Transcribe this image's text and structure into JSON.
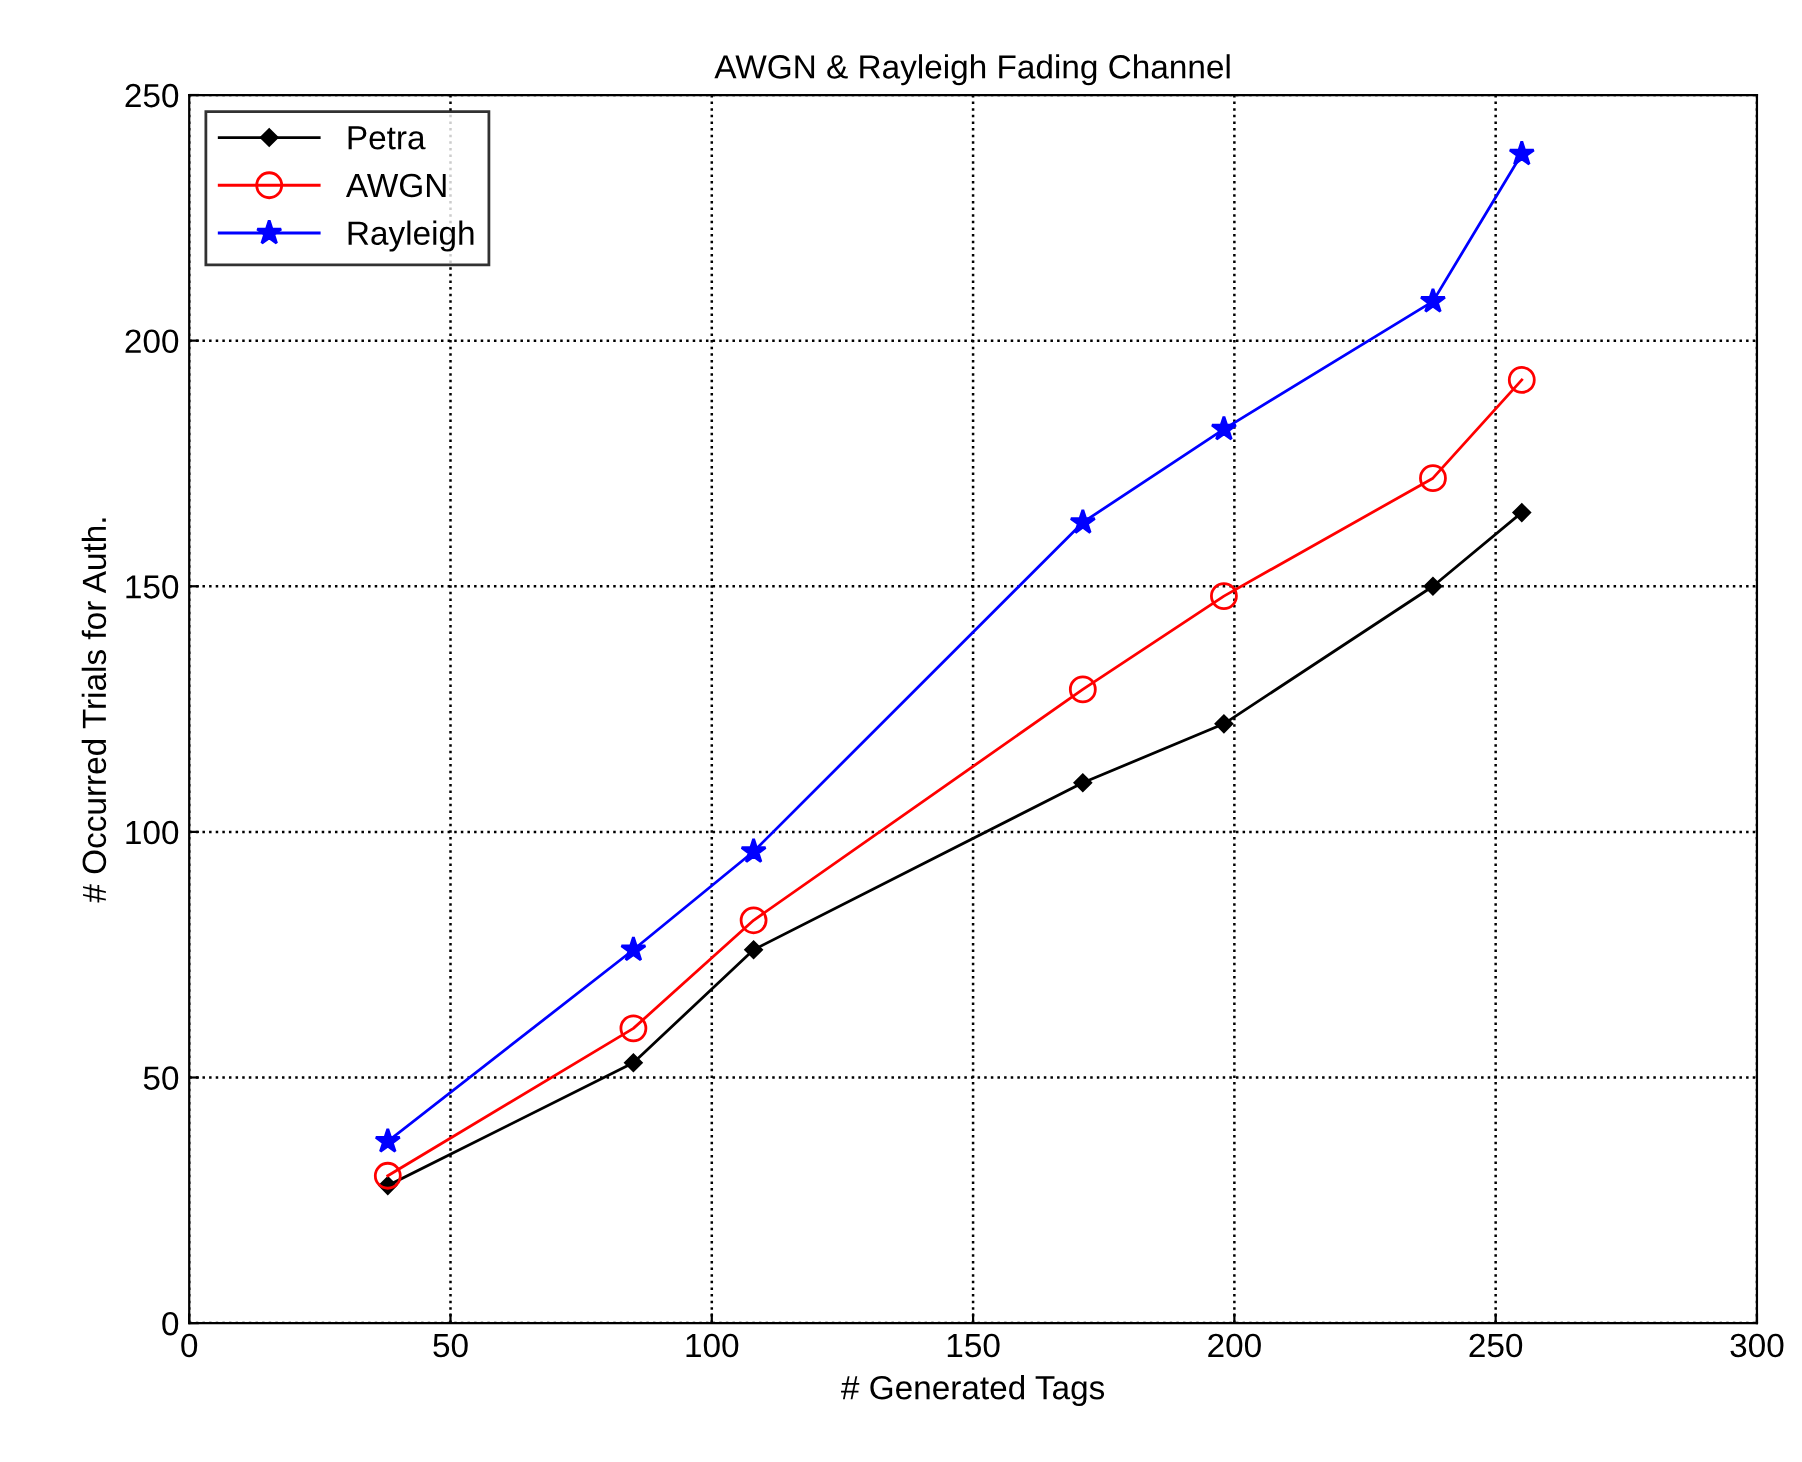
{
  "chart_data": {
    "type": "line",
    "title": "AWGN & Rayleigh Fading Channel",
    "xlabel": "# Generated Tags",
    "ylabel": "# Occurred Trials for Auth.",
    "x": [
      38,
      85,
      108,
      171,
      198,
      238,
      255
    ],
    "series": [
      {
        "name": "Petra",
        "color": "#000000",
        "marker": "diamond",
        "values": [
          28,
          53,
          76,
          110,
          122,
          150,
          165
        ]
      },
      {
        "name": "AWGN",
        "color": "#ff0000",
        "marker": "circle",
        "values": [
          30,
          60,
          82,
          129,
          148,
          172,
          192
        ]
      },
      {
        "name": "Rayleigh",
        "color": "#0000ff",
        "marker": "star",
        "values": [
          37,
          76,
          96,
          163,
          182,
          208,
          238
        ]
      }
    ],
    "xlim": [
      0,
      300
    ],
    "xticks": [
      0,
      50,
      100,
      150,
      200,
      250,
      300
    ],
    "ylim": [
      0,
      250
    ],
    "yticks": [
      0,
      50,
      100,
      150,
      200,
      250
    ],
    "grid": true,
    "legend": "top left",
    "line_style": "solid"
  }
}
